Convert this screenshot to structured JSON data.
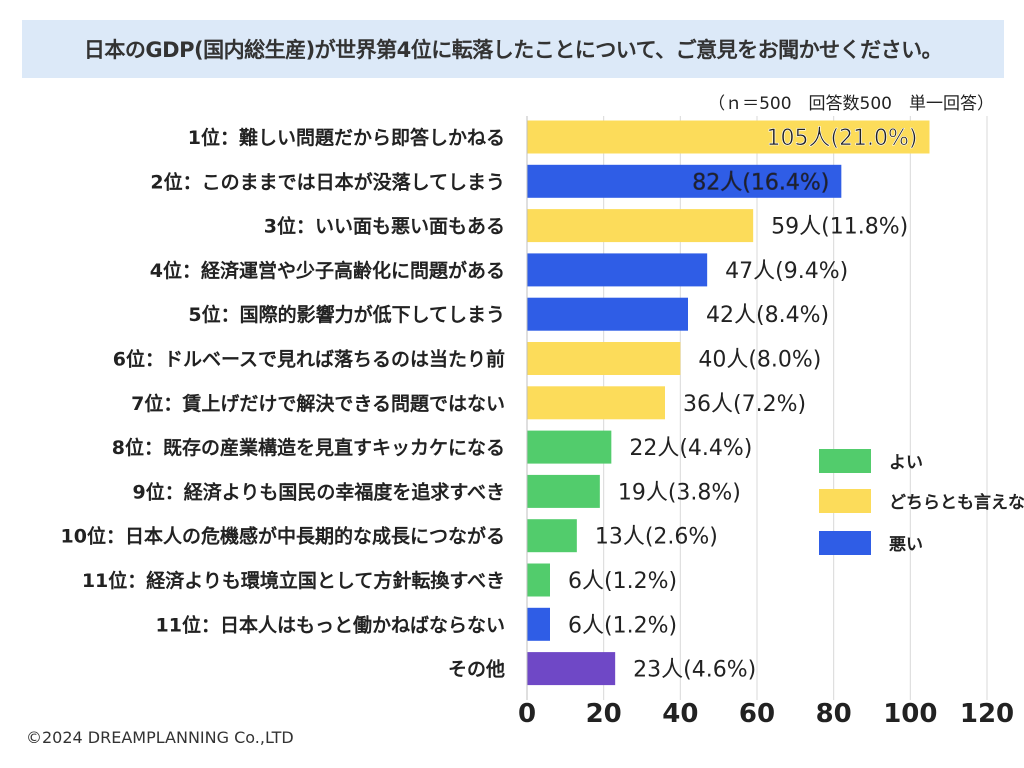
{
  "header": {
    "title": "日本のGDP(国内総生産)が世界第4位に転落したことについて、ご意見をお聞かせください。",
    "note": "（ｎ＝500　回答数500　単一回答）"
  },
  "footer": {
    "copyright": "©2024 DREAMPLANNING Co.,LTD"
  },
  "chart_data": {
    "type": "bar",
    "orientation": "horizontal",
    "title": "日本のGDP(国内総生産)が世界第4位に転落したことについて、ご意見をお聞かせください。",
    "xlabel": "",
    "ylabel": "",
    "xlim": [
      0,
      120
    ],
    "xticks": [
      "0",
      "20",
      "40",
      "60",
      "80",
      "100",
      "120"
    ],
    "grid": true,
    "legend_position": "right",
    "colors": {
      "good": "#52cc6c",
      "neutral": "#fcdc5a",
      "bad": "#2f5de6",
      "other": "#6f48c6",
      "grid": "#d9d9d9"
    },
    "legend": [
      {
        "key": "good",
        "label": "よい"
      },
      {
        "key": "neutral",
        "label": "どちらとも言えない"
      },
      {
        "key": "bad",
        "label": "悪い"
      }
    ],
    "categories": [
      {
        "label": "1位：難しい問題だから即答しかねる",
        "value": 105,
        "value_label": "105人(21.0%)",
        "group": "neutral"
      },
      {
        "label": "2位：このままでは日本が没落してしまう",
        "value": 82,
        "value_label": "82人(16.4%)",
        "group": "bad"
      },
      {
        "label": "3位：いい面も悪い面もある",
        "value": 59,
        "value_label": "59人(11.8%)",
        "group": "neutral"
      },
      {
        "label": "4位：経済運営や少子高齢化に問題がある",
        "value": 47,
        "value_label": "47人(9.4%)",
        "group": "bad"
      },
      {
        "label": "5位：国際的影響力が低下してしまう",
        "value": 42,
        "value_label": "42人(8.4%)",
        "group": "bad"
      },
      {
        "label": "6位：ドルベースで見れば落ちるのは当たり前",
        "value": 40,
        "value_label": "40人(8.0%)",
        "group": "neutral"
      },
      {
        "label": "7位：賃上げだけで解決できる問題ではない",
        "value": 36,
        "value_label": "36人(7.2%)",
        "group": "neutral"
      },
      {
        "label": "8位：既存の産業構造を見直すキッカケになる",
        "value": 22,
        "value_label": "22人(4.4%)",
        "group": "good"
      },
      {
        "label": "9位：経済よりも国民の幸福度を追求すべき",
        "value": 19,
        "value_label": "19人(3.8%)",
        "group": "good"
      },
      {
        "label": "10位：日本人の危機感が中長期的な成長につながる",
        "value": 13,
        "value_label": "13人(2.6%)",
        "group": "good"
      },
      {
        "label": "11位：経済よりも環境立国として方針転換すべき",
        "value": 6,
        "value_label": "6人(1.2%)",
        "group": "good"
      },
      {
        "label": "11位：日本人はもっと働かねばならない",
        "value": 6,
        "value_label": "6人(1.2%)",
        "group": "bad"
      },
      {
        "label": "その他",
        "value": 23,
        "value_label": "23人(4.6%)",
        "group": "other"
      }
    ]
  }
}
